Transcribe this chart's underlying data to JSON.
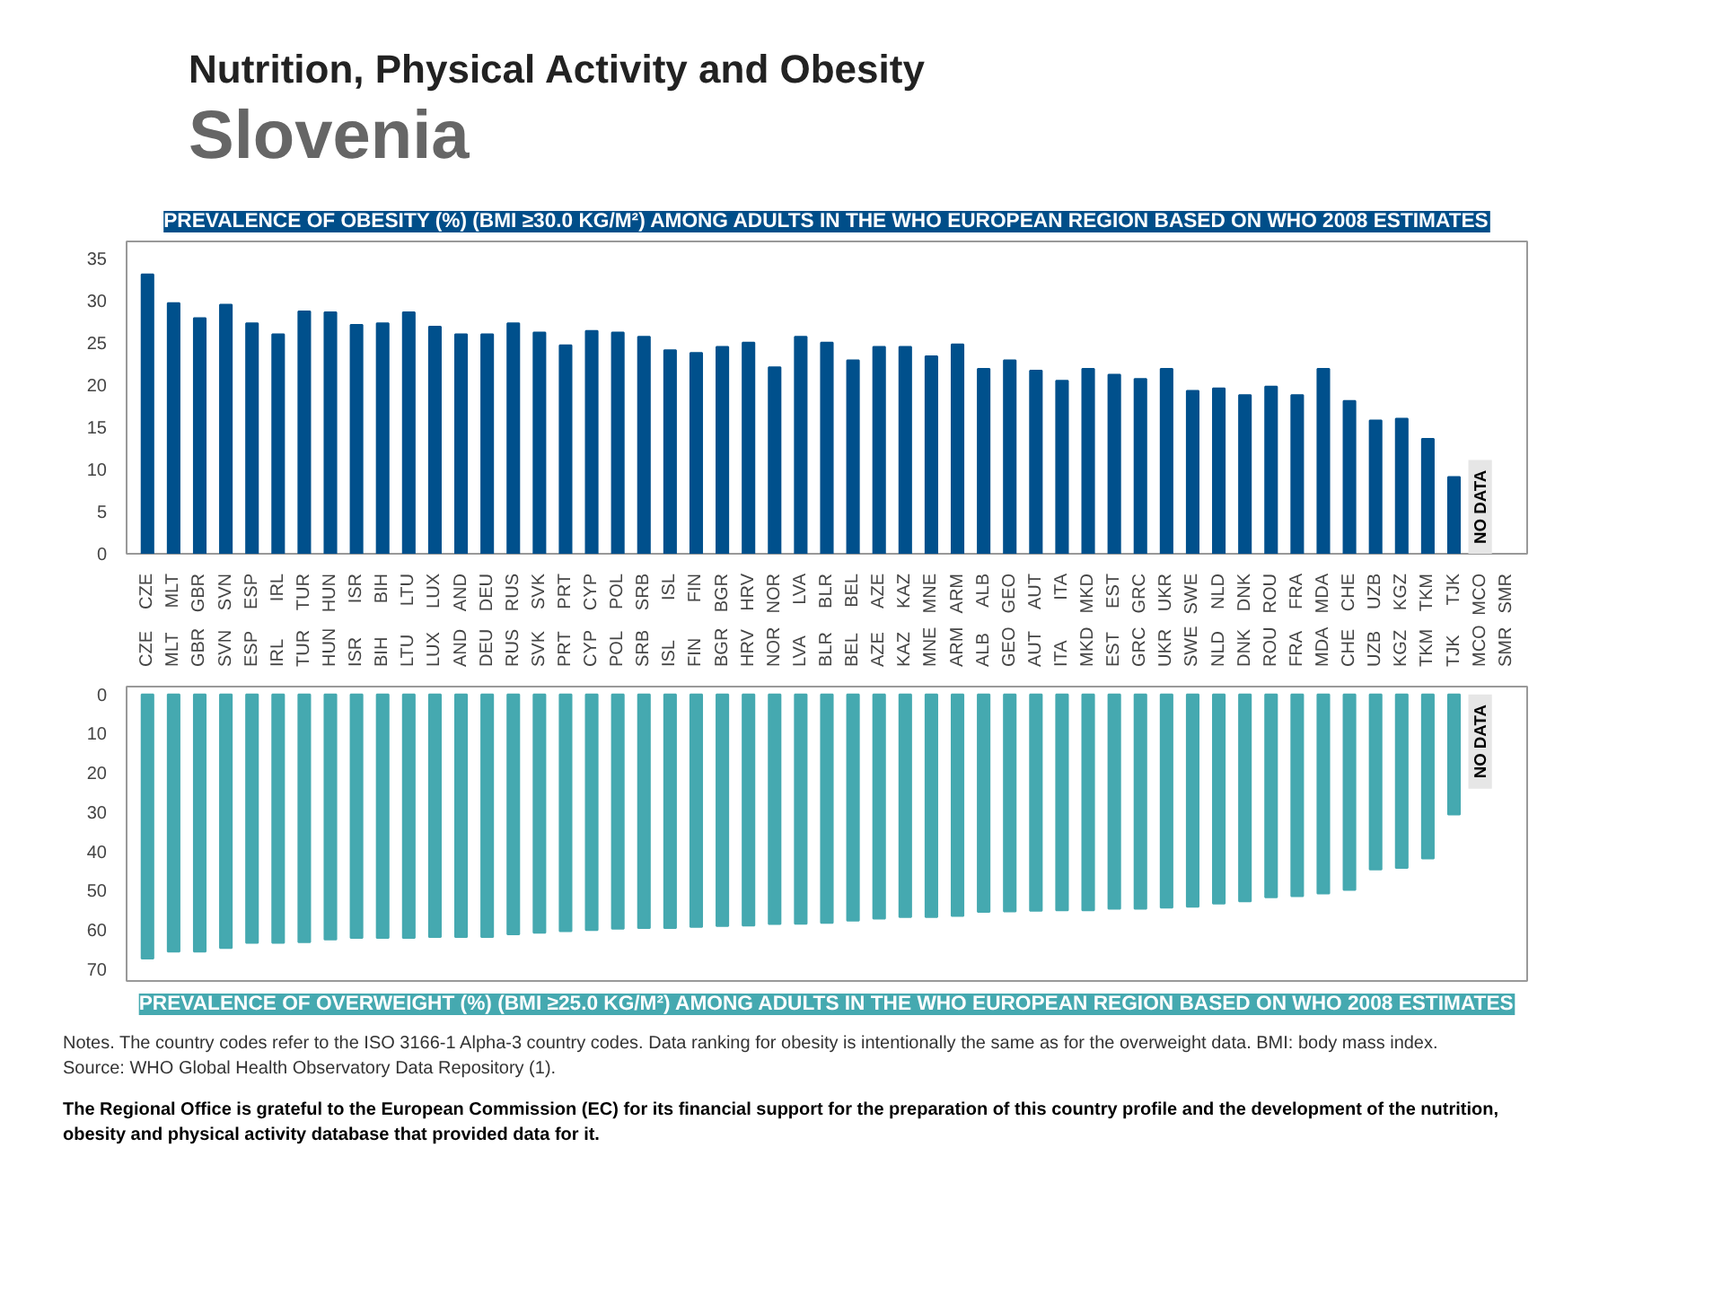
{
  "chart_data": [
    {
      "type": "bar",
      "title": "PREVALENCE OF OBESITY (%) (BMI ≥30.0 KG/M²) AMONG ADULTS IN THE WHO EUROPEAN REGION BASED ON WHO 2008 ESTIMATES",
      "categories": [
        "CZE",
        "MLT",
        "GBR",
        "SVN",
        "ESP",
        "IRL",
        "TUR",
        "HUN",
        "ISR",
        "BIH",
        "LTU",
        "LUX",
        "AND",
        "DEU",
        "RUS",
        "SVK",
        "PRT",
        "CYP",
        "POL",
        "SRB",
        "ISL",
        "FIN",
        "BGR",
        "HRV",
        "NOR",
        "LVA",
        "BLR",
        "BEL",
        "AZE",
        "KAZ",
        "MNE",
        "ARM",
        "ALB",
        "GEO",
        "AUT",
        "ITA",
        "MKD",
        "EST",
        "GRC",
        "UKR",
        "SWE",
        "NLD",
        "DNK",
        "ROU",
        "FRA",
        "MDA",
        "CHE",
        "UZB",
        "KGZ",
        "TKM",
        "TJK",
        "MCO",
        "SMR"
      ],
      "values": [
        33.1,
        29.7,
        27.9,
        29.5,
        27.3,
        26.0,
        28.7,
        28.6,
        27.1,
        27.3,
        28.6,
        26.9,
        26.0,
        26.0,
        27.3,
        26.2,
        24.7,
        26.4,
        26.2,
        25.7,
        24.1,
        23.8,
        24.5,
        25.0,
        22.1,
        25.7,
        25.0,
        22.9,
        24.5,
        24.5,
        23.4,
        24.8,
        21.9,
        22.9,
        21.7,
        20.5,
        21.9,
        21.2,
        20.7,
        21.9,
        19.3,
        19.6,
        18.8,
        19.8,
        18.8,
        21.9,
        18.1,
        15.8,
        16.0,
        13.6,
        9.1,
        null,
        null
      ],
      "color": "#00508c",
      "ylim": [
        0,
        37
      ],
      "yticks": [
        0,
        5,
        10,
        15,
        20,
        25,
        30,
        35
      ],
      "grid": false,
      "annotations": [
        "Nutrition, Physical Activity and Obesity",
        "Slovenia",
        "NO DATA"
      ]
    },
    {
      "type": "bar",
      "title": "PREVALENCE OF OVERWEIGHT (%) (BMI ≥25.0 KG/M²) AMONG ADULTS IN THE WHO EUROPEAN REGION BASED ON WHO 2008 ESTIMATES",
      "categories": [
        "CZE",
        "MLT",
        "GBR",
        "SVN",
        "ESP",
        "IRL",
        "TUR",
        "HUN",
        "ISR",
        "BIH",
        "LTU",
        "LUX",
        "AND",
        "DEU",
        "RUS",
        "SVK",
        "PRT",
        "CYP",
        "POL",
        "SRB",
        "ISL",
        "FIN",
        "BGR",
        "HRV",
        "NOR",
        "LVA",
        "BLR",
        "BEL",
        "AZE",
        "KAZ",
        "MNE",
        "ARM",
        "ALB",
        "GEO",
        "AUT",
        "ITA",
        "MKD",
        "EST",
        "GRC",
        "UKR",
        "SWE",
        "NLD",
        "DNK",
        "ROU",
        "FRA",
        "MDA",
        "CHE",
        "UZB",
        "KGZ",
        "TKM",
        "TJK",
        "MCO",
        "SMR"
      ],
      "values": [
        67.3,
        65.5,
        65.5,
        64.6,
        63.3,
        63.3,
        63.1,
        62.4,
        62.0,
        62.0,
        62.0,
        61.8,
        61.8,
        61.8,
        61.1,
        60.7,
        60.3,
        60.0,
        59.7,
        59.5,
        59.5,
        59.2,
        59.0,
        58.9,
        58.5,
        58.4,
        58.2,
        57.6,
        57.1,
        56.7,
        56.7,
        56.4,
        55.4,
        55.3,
        55.1,
        55.0,
        55.0,
        54.6,
        54.6,
        54.3,
        54.1,
        53.3,
        52.7,
        51.7,
        51.4,
        50.7,
        49.8,
        44.6,
        44.2,
        41.8,
        30.6,
        null,
        null
      ],
      "color": "#45a9b0",
      "ylim": [
        73,
        -2
      ],
      "yticks": [
        0,
        10,
        20,
        30,
        40,
        50,
        60,
        70
      ],
      "grid": false,
      "annotations": [
        "NO DATA",
        "Notes. The country codes refer to the ISO 3166-1 Alpha-3 country codes. Data ranking for obesity is intentionally the same as for the overweight data. BMI: body mass index.",
        "Source: WHO Global Health Observatory Data Repository (1).",
        "The Regional Office is grateful to the European Commission (EC) for its financial support for the preparation of this country profile and the development of the nutrition, obesity and physical activity database that provided data for it."
      ]
    }
  ]
}
